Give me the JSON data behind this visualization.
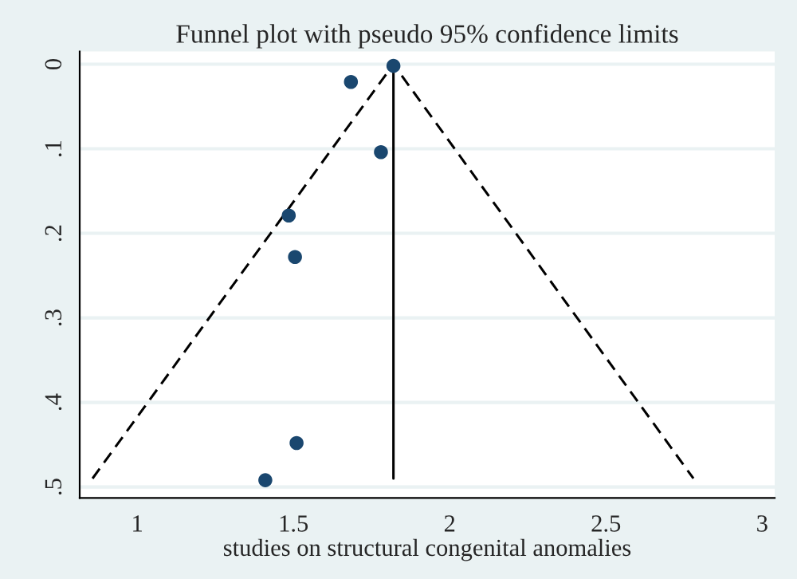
{
  "chart_data": {
    "type": "scatter",
    "title": "Funnel plot with pseudo 95% confidence limits",
    "xlabel": "studies on structural congenital anomalies",
    "xlim": [
      0.816,
      3.04
    ],
    "xticks": [
      1,
      1.5,
      2,
      2.5,
      3
    ],
    "ylim": [
      0.513,
      -0.015
    ],
    "yticks": [
      0,
      {
        "value": 0.1,
        "label": ".1"
      },
      {
        "value": 0.2,
        "label": ".2"
      },
      {
        "value": 0.3,
        "label": ".3"
      },
      {
        "value": 0.4,
        "label": ".4"
      },
      {
        "value": 0.5,
        "label": ".5"
      }
    ],
    "grid": "y",
    "legend": false,
    "series": [
      {
        "color": "#1a476f",
        "marker": "circle",
        "x": [
          1.82,
          1.684,
          1.78,
          1.485,
          1.505,
          1.51,
          1.41
        ],
        "values": [
          0.002,
          0.021,
          0.104,
          0.179,
          0.228,
          0.448,
          0.492
        ]
      },
      {
        "type": "line",
        "color": "#000000",
        "line_style": "dashed",
        "marker": "none",
        "x": [
          0.857,
          1.82,
          2.78
        ],
        "values": [
          0.49,
          0.0,
          0.49
        ]
      },
      {
        "type": "line",
        "color": "#000000",
        "line_style": "solid",
        "marker": "none",
        "x": [
          1.82,
          1.82
        ],
        "values": [
          0.0,
          0.49
        ]
      }
    ]
  }
}
